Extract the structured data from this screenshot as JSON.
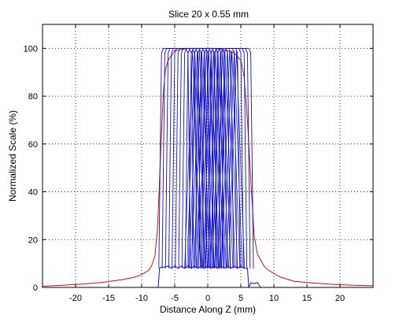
{
  "chart_data": {
    "type": "line",
    "title": "Slice 20 x 0.55 mm",
    "xlabel": "Distance Along Z (mm)",
    "ylabel": "Normalized Scale (%)",
    "xlim": [
      -25,
      25
    ],
    "ylim": [
      0,
      110
    ],
    "xticks": [
      -20,
      -15,
      -10,
      -5,
      0,
      5,
      10,
      15,
      20
    ],
    "yticks": [
      0,
      20,
      40,
      60,
      80,
      100
    ],
    "grid": true,
    "series": [
      {
        "color": "#d01010",
        "x": [
          -25,
          -22,
          -19,
          -16,
          -13,
          -11,
          -10,
          -9,
          -8.5,
          -8,
          -7.6,
          -7.3,
          -7,
          -6.7,
          -6.4,
          -6,
          -5.5,
          -5,
          -4,
          -3,
          -2,
          -1,
          0,
          1,
          2,
          3,
          4,
          5,
          5.5,
          6,
          6.5,
          7,
          7.5,
          8,
          8.5,
          9,
          10,
          11,
          13,
          16,
          19,
          22,
          25
        ],
        "y": [
          0.5,
          0.9,
          1.4,
          2.1,
          3.2,
          4.3,
          5.4,
          7.0,
          9.0,
          13,
          25,
          45,
          65,
          82,
          91,
          95,
          97,
          99,
          99.5,
          100,
          100,
          100,
          100,
          100,
          99.5,
          99,
          98,
          95,
          88,
          70,
          45,
          22,
          14,
          11.5,
          9,
          7.6,
          5.8,
          4.3,
          2.6,
          1.8,
          1.3,
          0.9,
          0.7
        ]
      },
      {
        "color": "#1010c8",
        "x": [
          -7.5,
          -7.3,
          -7,
          -6.5,
          -6,
          -5.5,
          -5,
          -4.5,
          -4,
          -3.5,
          -3,
          -2.5,
          -2,
          -1.5,
          -1,
          -0.5,
          0,
          0.5,
          1,
          1.5,
          2,
          2.5,
          3,
          3.5,
          4,
          4.5,
          5,
          5.5,
          6,
          6.2,
          6.5,
          7,
          7.5,
          8
        ],
        "y": [
          0,
          8,
          8.5,
          8.5,
          9,
          8,
          9,
          8,
          9,
          8,
          9,
          8,
          9,
          8,
          9,
          8,
          9,
          8,
          9,
          8,
          9,
          8,
          9,
          8,
          9,
          8,
          9,
          8,
          8,
          0,
          2,
          1.5,
          2,
          0
        ]
      }
    ]
  }
}
